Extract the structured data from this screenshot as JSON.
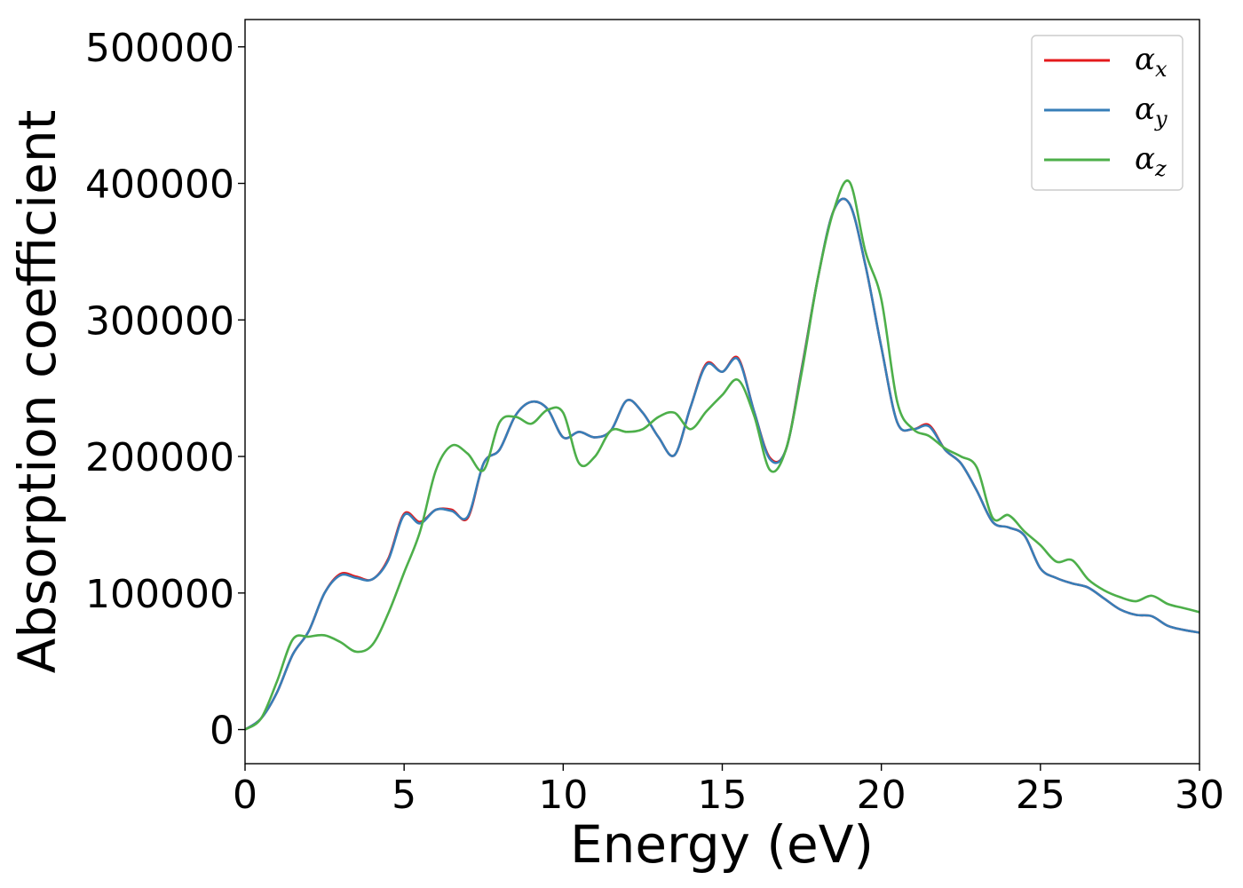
{
  "chart_data": {
    "type": "line",
    "xlabel": "Energy (eV)",
    "ylabel": "Absorption coefficient",
    "xlim": [
      0,
      30
    ],
    "ylim": [
      -25000,
      520000
    ],
    "xticks": [
      0,
      5,
      10,
      15,
      20,
      25,
      30
    ],
    "yticks": [
      0,
      100000,
      200000,
      300000,
      400000,
      500000
    ],
    "grid": false,
    "legend_position": "top-right",
    "x": [
      0,
      0.5,
      1,
      1.5,
      2,
      2.5,
      3,
      3.5,
      4,
      4.5,
      5,
      5.5,
      6,
      6.5,
      7,
      7.5,
      8,
      8.5,
      9,
      9.5,
      10,
      10.5,
      11,
      11.5,
      12,
      12.5,
      13,
      13.5,
      14,
      14.5,
      15,
      15.5,
      16,
      16.5,
      17,
      17.5,
      18,
      18.5,
      19,
      19.5,
      20,
      20.5,
      21,
      21.5,
      22,
      22.5,
      23,
      23.5,
      24,
      24.5,
      25,
      25.5,
      26,
      26.5,
      27,
      27.5,
      28,
      28.5,
      29,
      29.5,
      30
    ],
    "series": [
      {
        "name": "α",
        "subscript": "x",
        "color": "#e41a1c",
        "values": [
          0,
          8000,
          27000,
          55000,
          72000,
          100000,
          114000,
          112000,
          110000,
          125000,
          158000,
          152000,
          161000,
          161000,
          155000,
          195000,
          205000,
          230000,
          240000,
          235000,
          214000,
          218000,
          214000,
          219000,
          241000,
          232000,
          214000,
          201000,
          236000,
          268000,
          262000,
          272000,
          233000,
          199000,
          205000,
          265000,
          330000,
          380000,
          385000,
          340000,
          280000,
          225000,
          220000,
          223000,
          205000,
          195000,
          175000,
          152000,
          148000,
          142000,
          118000,
          111000,
          107000,
          104000,
          96000,
          88000,
          84000,
          83000,
          76000,
          73000,
          71000
        ]
      },
      {
        "name": "α",
        "subscript": "y",
        "color": "#377eb8",
        "values": [
          0,
          8000,
          27000,
          55000,
          72000,
          100000,
          113000,
          111000,
          110000,
          124000,
          157000,
          151000,
          161000,
          160000,
          156000,
          195000,
          205000,
          230000,
          240000,
          235000,
          214000,
          218000,
          214000,
          219000,
          241000,
          232000,
          214000,
          201000,
          236000,
          267000,
          262000,
          271000,
          233000,
          198000,
          205000,
          264000,
          330000,
          380000,
          385000,
          340000,
          280000,
          225000,
          220000,
          222000,
          205000,
          195000,
          175000,
          152000,
          148000,
          142000,
          118000,
          111000,
          107000,
          104000,
          96000,
          88000,
          84000,
          83000,
          76000,
          73000,
          71000
        ]
      },
      {
        "name": "α",
        "subscript": "z",
        "color": "#4daf4a",
        "values": [
          0,
          8000,
          35000,
          66000,
          68000,
          69000,
          64000,
          57000,
          62000,
          85000,
          115000,
          145000,
          190000,
          208000,
          202000,
          190000,
          225000,
          229000,
          224000,
          234000,
          232000,
          195000,
          200000,
          219000,
          218000,
          220000,
          229000,
          232000,
          220000,
          233000,
          245000,
          256000,
          230000,
          190000,
          205000,
          262000,
          330000,
          380000,
          401000,
          350000,
          315000,
          240000,
          220000,
          215000,
          206000,
          200000,
          192000,
          155000,
          157000,
          145000,
          135000,
          123000,
          124000,
          110000,
          102000,
          97000,
          94000,
          98000,
          92000,
          89000,
          86000
        ]
      }
    ]
  }
}
